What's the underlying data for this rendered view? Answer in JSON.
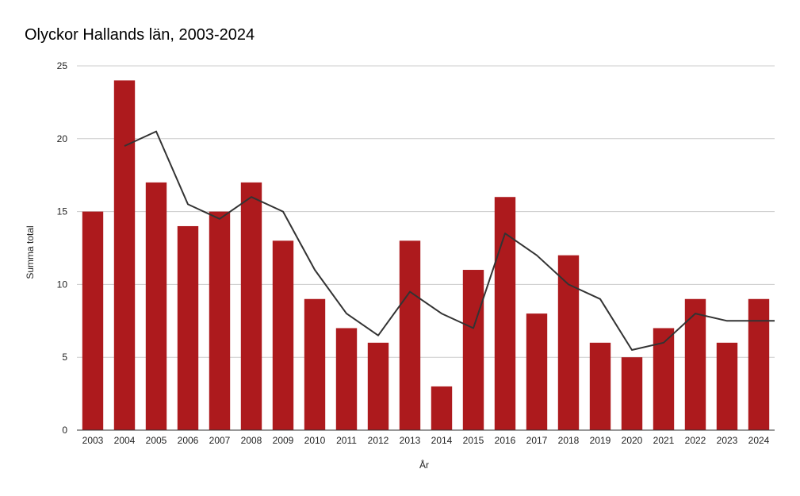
{
  "chart_data": {
    "type": "bar",
    "title": "Olyckor Hallands län, 2003-2024",
    "xlabel": "År",
    "ylabel": "Summa total",
    "ylim": [
      0,
      25
    ],
    "yticks": [
      0,
      5,
      10,
      15,
      20,
      25
    ],
    "grid": true,
    "categories": [
      "2003",
      "2004",
      "2005",
      "2006",
      "2007",
      "2008",
      "2009",
      "2010",
      "2011",
      "2012",
      "2013",
      "2014",
      "2015",
      "2016",
      "2017",
      "2018",
      "2019",
      "2020",
      "2021",
      "2022",
      "2023",
      "2024"
    ],
    "series": [
      {
        "type": "bar",
        "values": [
          15,
          24,
          17,
          14,
          15,
          17,
          13,
          9,
          7,
          6,
          13,
          3,
          11,
          16,
          8,
          12,
          6,
          5,
          7,
          9,
          6,
          9
        ],
        "color": "#ad1a1d"
      },
      {
        "type": "line",
        "values": [
          null,
          19.5,
          20.5,
          15.5,
          14.5,
          16,
          15,
          11,
          8,
          6.5,
          9.5,
          8,
          7,
          13.5,
          12,
          10,
          9,
          5.5,
          6,
          8,
          7.5,
          7.5
        ],
        "color": "#333333"
      }
    ]
  }
}
